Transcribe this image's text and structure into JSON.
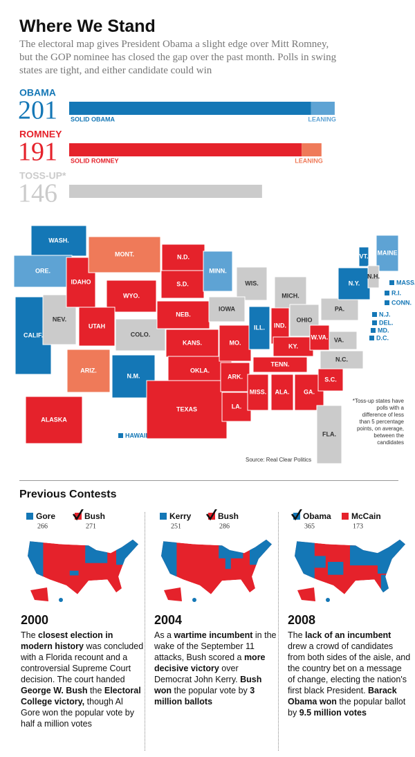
{
  "header": {
    "title": "Where We Stand",
    "subtitle": "The electoral map gives President Obama a slight edge over Mitt Romney, but the GOP nominee has closed the gap over the past month. Polls in swing states are tight, and either candidate could win"
  },
  "tally": [
    {
      "name": "OBAMA",
      "total": 201,
      "color": "#1477b6",
      "solid": {
        "label": "SOLID OBAMA",
        "value": 183
      },
      "leaning": {
        "label": "LEANING",
        "value": 18,
        "color": "#5ea3d4"
      }
    },
    {
      "name": "ROMNEY",
      "total": 191,
      "color": "#e5222b",
      "solid": {
        "label": "SOLID ROMNEY",
        "value": 176
      },
      "leaning": {
        "label": "LEANING",
        "value": 15,
        "color": "#ef7a59"
      }
    },
    {
      "name": "TOSS-UP*",
      "total": 146,
      "color": "#cbcbcb"
    }
  ],
  "map": {
    "status_colors": {
      "obama": "#1477b6",
      "lean-obama": "#5ea3d4",
      "romney": "#e5222b",
      "lean-romney": "#ef7a59",
      "tossup": "#cbcbcb"
    },
    "states": [
      {
        "label": "WASH.",
        "status": "obama"
      },
      {
        "label": "ORE.",
        "status": "lean-obama"
      },
      {
        "label": "CALIF.",
        "status": "obama"
      },
      {
        "label": "NEV.",
        "status": "tossup"
      },
      {
        "label": "IDAHO",
        "status": "romney"
      },
      {
        "label": "MONT.",
        "status": "lean-romney"
      },
      {
        "label": "WYO.",
        "status": "romney"
      },
      {
        "label": "UTAH",
        "status": "romney"
      },
      {
        "label": "COLO.",
        "status": "tossup"
      },
      {
        "label": "ARIZ.",
        "status": "lean-romney"
      },
      {
        "label": "N.M.",
        "status": "obama"
      },
      {
        "label": "N.D.",
        "status": "romney"
      },
      {
        "label": "S.D.",
        "status": "romney"
      },
      {
        "label": "NEB.",
        "status": "romney"
      },
      {
        "label": "KANS.",
        "status": "romney"
      },
      {
        "label": "OKLA.",
        "status": "romney"
      },
      {
        "label": "TEXAS",
        "status": "romney"
      },
      {
        "label": "MINN.",
        "status": "lean-obama"
      },
      {
        "label": "WIS.",
        "status": "tossup"
      },
      {
        "label": "IOWA",
        "status": "tossup"
      },
      {
        "label": "MO.",
        "status": "romney"
      },
      {
        "label": "ARK.",
        "status": "romney"
      },
      {
        "label": "LA.",
        "status": "romney"
      },
      {
        "label": "ILL.",
        "status": "obama"
      },
      {
        "label": "MICH.",
        "status": "tossup"
      },
      {
        "label": "IND.",
        "status": "romney"
      },
      {
        "label": "OHIO",
        "status": "tossup"
      },
      {
        "label": "KY.",
        "status": "romney"
      },
      {
        "label": "TENN.",
        "status": "romney"
      },
      {
        "label": "MISS.",
        "status": "romney"
      },
      {
        "label": "ALA.",
        "status": "romney"
      },
      {
        "label": "GA.",
        "status": "romney"
      },
      {
        "label": "S.C.",
        "status": "romney"
      },
      {
        "label": "N.C.",
        "status": "tossup"
      },
      {
        "label": "VA.",
        "status": "tossup"
      },
      {
        "label": "W.VA.",
        "status": "romney"
      },
      {
        "label": "PA.",
        "status": "tossup"
      },
      {
        "label": "N.Y.",
        "status": "obama"
      },
      {
        "label": "VT.",
        "status": "obama"
      },
      {
        "label": "MAINE",
        "status": "lean-obama"
      },
      {
        "label": "N.H.",
        "status": "tossup"
      },
      {
        "label": "MASS.",
        "status": "obama"
      },
      {
        "label": "R.I.",
        "status": "obama"
      },
      {
        "label": "CONN.",
        "status": "obama"
      },
      {
        "label": "N.J.",
        "status": "obama"
      },
      {
        "label": "DEL.",
        "status": "obama"
      },
      {
        "label": "MD.",
        "status": "obama"
      },
      {
        "label": "D.C.",
        "status": "obama"
      },
      {
        "label": "FLA.",
        "status": "tossup"
      },
      {
        "label": "ALASKA",
        "status": "romney"
      },
      {
        "label": "HAWAII",
        "status": "obama"
      }
    ],
    "note": "*Toss-up states have polls with a difference of less than 5 percentage points, on average, between the candidates",
    "source": "Source: Real Clear Politics"
  },
  "previous": {
    "title": "Previous Contests",
    "contests": [
      {
        "year": "2000",
        "candidates": [
          {
            "name": "Gore",
            "votes": 266,
            "color": "#1477b6",
            "winner": false
          },
          {
            "name": "Bush",
            "votes": 271,
            "color": "#e5222b",
            "winner": true
          }
        ],
        "text": [
          {
            "text": "The ",
            "bold": false
          },
          {
            "text": "closest election in modern history",
            "bold": true
          },
          {
            "text": " was concluded with a Florida recount and a controversial Supreme Court decision. The court handed ",
            "bold": false
          },
          {
            "text": "George W. Bush",
            "bold": true
          },
          {
            "text": " the ",
            "bold": false
          },
          {
            "text": "Electoral College victory,",
            "bold": true
          },
          {
            "text": " though Al Gore won the popular vote by half a million votes",
            "bold": false
          }
        ]
      },
      {
        "year": "2004",
        "candidates": [
          {
            "name": "Kerry",
            "votes": 251,
            "color": "#1477b6",
            "winner": false
          },
          {
            "name": "Bush",
            "votes": 286,
            "color": "#e5222b",
            "winner": true
          }
        ],
        "text": [
          {
            "text": "As a ",
            "bold": false
          },
          {
            "text": "wartime incumbent",
            "bold": true
          },
          {
            "text": " in the wake of the September 11 attacks, Bush scored a ",
            "bold": false
          },
          {
            "text": "more decisive victory",
            "bold": true
          },
          {
            "text": " over Democrat John Kerry. ",
            "bold": false
          },
          {
            "text": "Bush won",
            "bold": true
          },
          {
            "text": " the popular vote by ",
            "bold": false
          },
          {
            "text": "3 million ballots",
            "bold": true
          }
        ]
      },
      {
        "year": "2008",
        "candidates": [
          {
            "name": "Obama",
            "votes": 365,
            "color": "#1477b6",
            "winner": true
          },
          {
            "name": "McCain",
            "votes": 173,
            "color": "#e5222b",
            "winner": false
          }
        ],
        "text": [
          {
            "text": "The ",
            "bold": false
          },
          {
            "text": "lack of an incumbent",
            "bold": true
          },
          {
            "text": " drew a crowd of candidates from both sides of the aisle, and the country bet on a message of change, electing the nation's first black President. ",
            "bold": false
          },
          {
            "text": "Barack Obama won",
            "bold": true
          },
          {
            "text": " the popular ballot by ",
            "bold": false
          },
          {
            "text": "9.5 million votes",
            "bold": true
          }
        ]
      }
    ]
  }
}
